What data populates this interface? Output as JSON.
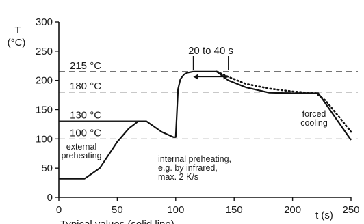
{
  "chart_data": {
    "type": "line",
    "xlabel": "t (s)",
    "ylabel_line1": "T",
    "ylabel_line2": "(°C)",
    "xlim": [
      0,
      250
    ],
    "ylim": [
      0,
      300
    ],
    "x_ticks": [
      0,
      50,
      100,
      150,
      200,
      250
    ],
    "y_ticks": [
      0,
      50,
      100,
      150,
      200,
      250,
      300
    ],
    "footer_text": "Typical values (solid line)",
    "series": [
      {
        "style": "solid",
        "points": [
          [
            0,
            32
          ],
          [
            22,
            32
          ],
          [
            35,
            50
          ],
          [
            50,
            95
          ],
          [
            60,
            118
          ],
          [
            68,
            130
          ],
          [
            75,
            130
          ],
          [
            88,
            112
          ],
          [
            98,
            103
          ],
          [
            100,
            103
          ],
          [
            102,
            185
          ],
          [
            104,
            202
          ],
          [
            107,
            210
          ],
          [
            110,
            213
          ],
          [
            115,
            215
          ],
          [
            135,
            215
          ],
          [
            145,
            200
          ],
          [
            160,
            188
          ],
          [
            180,
            179
          ],
          [
            200,
            178
          ],
          [
            222,
            178
          ],
          [
            250,
            98
          ]
        ]
      },
      {
        "style": "dotted",
        "points": [
          [
            135,
            215
          ],
          [
            145,
            206
          ],
          [
            160,
            194
          ],
          [
            180,
            186
          ],
          [
            200,
            181
          ],
          [
            220,
            178
          ],
          [
            228,
            166
          ],
          [
            240,
            137
          ],
          [
            250,
            112
          ]
        ]
      }
    ],
    "reference_lines": [
      {
        "y": 215,
        "label": "215 °C",
        "style": "dashed"
      },
      {
        "y": 180,
        "label": "180 °C",
        "style": "dashed"
      },
      {
        "y": 130,
        "label": "130 °C",
        "style": "solid"
      },
      {
        "y": 100,
        "label": "100 °C",
        "style": "dashed"
      }
    ],
    "interval": {
      "label": "20 to 40 s",
      "x_start": 115,
      "x_end": 145,
      "y": 248
    },
    "annotations": [
      {
        "id": "external",
        "lines": [
          "external",
          "preheating"
        ]
      },
      {
        "id": "internal",
        "lines": [
          "internal preheating,",
          "e.g. by infrared,",
          "max. 2 K/s"
        ]
      },
      {
        "id": "forced",
        "lines": [
          "forced",
          "cooling"
        ]
      }
    ]
  }
}
